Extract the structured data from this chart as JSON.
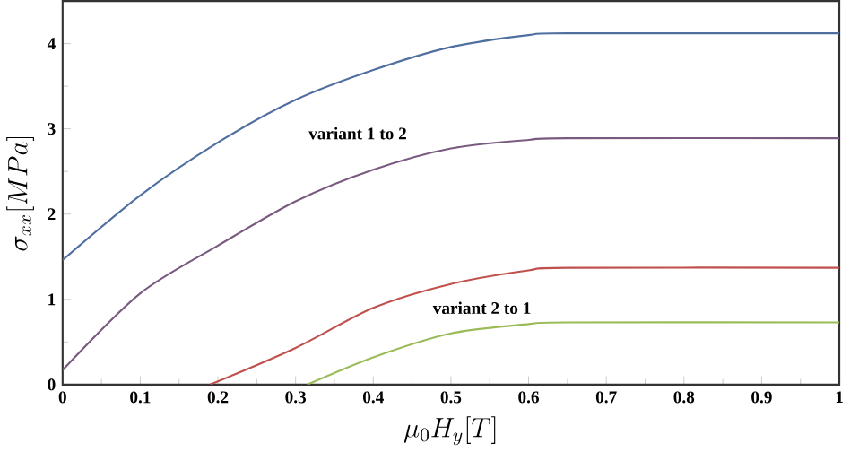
{
  "chart_data": {
    "type": "line",
    "xlabel": "\\mu_0 H_y[T]",
    "ylabel": "\\sigma_{xx}[MPa]",
    "xlim": [
      0,
      1
    ],
    "ylim": [
      0,
      4.5
    ],
    "xticks": [
      0,
      0.1,
      0.2,
      0.3,
      0.4,
      0.5,
      0.6,
      0.7,
      0.8,
      0.9,
      1
    ],
    "yticks": [
      0,
      1,
      2,
      3,
      4
    ],
    "grid": false,
    "marker": "none",
    "line_style": "solid",
    "series": [
      {
        "color": "#4f6fa0",
        "x": [
          0,
          0.1,
          0.2,
          0.3,
          0.4,
          0.5,
          0.6,
          0.65,
          1
        ],
        "values": [
          1.46,
          2.22,
          2.84,
          3.34,
          3.69,
          3.96,
          4.1,
          4.12,
          4.12
        ]
      },
      {
        "color": "#7a5a80",
        "x": [
          0,
          0.1,
          0.2,
          0.3,
          0.4,
          0.5,
          0.6,
          0.65,
          1
        ],
        "values": [
          0.17,
          1.07,
          1.63,
          2.15,
          2.52,
          2.77,
          2.87,
          2.89,
          2.89
        ]
      },
      {
        "color": "#c0504d",
        "x": [
          0.19,
          0.3,
          0.4,
          0.5,
          0.6,
          0.65,
          1
        ],
        "values": [
          0,
          0.43,
          0.9,
          1.18,
          1.34,
          1.37,
          1.37
        ]
      },
      {
        "color": "#9bbb59",
        "x": [
          0.315,
          0.4,
          0.5,
          0.6,
          0.65,
          1
        ],
        "values": [
          0,
          0.32,
          0.6,
          0.71,
          0.73,
          0.73
        ]
      }
    ],
    "annotations": [
      "variant 1 to 2",
      "variant 2 to 1"
    ]
  }
}
